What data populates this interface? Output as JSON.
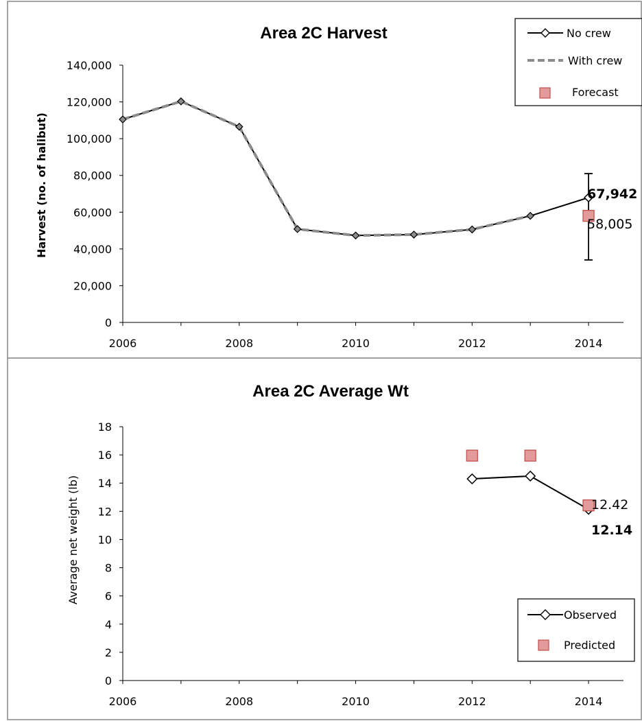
{
  "chart_data": [
    {
      "type": "line",
      "title": "Area 2C Harvest",
      "ylabel": "Harvest (no. of halibut)",
      "xlabel": "",
      "xlim": [
        2006,
        2014.6
      ],
      "ylim": [
        0,
        140000
      ],
      "x_ticks": [
        "2006",
        "2008",
        "2010",
        "2012",
        "2014"
      ],
      "y_ticks": [
        "0",
        "20,000",
        "40,000",
        "60,000",
        "80,000",
        "100,000",
        "120,000",
        "140,000"
      ],
      "series": [
        {
          "name": "No crew",
          "color": "#000000",
          "x": [
            2006,
            2007,
            2008,
            2009,
            2010,
            2011,
            2012,
            2013,
            2014
          ],
          "values": [
            110500,
            120300,
            106500,
            50800,
            47300,
            47800,
            50600,
            58000,
            67942
          ]
        },
        {
          "name": "With crew",
          "color": "#8c8c8c",
          "x": [
            2006,
            2007,
            2008,
            2009,
            2010,
            2011,
            2012,
            2013
          ],
          "values": [
            110500,
            120300,
            106500,
            50800,
            47300,
            47800,
            50600,
            58000
          ]
        },
        {
          "name": "Forecast",
          "color": "#e39a9a",
          "x": [
            2014
          ],
          "values": [
            58005
          ]
        }
      ],
      "error_bar": {
        "x": 2014,
        "low": 34000,
        "high": 81000
      },
      "annotations": {
        "observed": "67,942",
        "forecast": "58,005"
      },
      "legend": [
        "No crew",
        "With crew",
        "Forecast"
      ],
      "legend_position": "top-right",
      "grid": false
    },
    {
      "type": "line",
      "title": "Area 2C Average Wt",
      "ylabel": "Average net weight (lb)",
      "xlabel": "",
      "xlim": [
        2006,
        2014.6
      ],
      "ylim": [
        0,
        18
      ],
      "x_ticks": [
        "2006",
        "2008",
        "2010",
        "2012",
        "2014"
      ],
      "y_ticks": [
        "0",
        "2",
        "4",
        "6",
        "8",
        "10",
        "12",
        "14",
        "16",
        "18"
      ],
      "series": [
        {
          "name": "Observed",
          "color": "#000000",
          "x": [
            2012,
            2013,
            2014
          ],
          "values": [
            14.3,
            14.5,
            12.14
          ]
        },
        {
          "name": "Predicted",
          "color": "#e39a9a",
          "x": [
            2012,
            2013,
            2014
          ],
          "values": [
            15.95,
            15.95,
            12.42
          ]
        }
      ],
      "annotations": {
        "predicted": "12.42",
        "observed": "12.14"
      },
      "legend": [
        "Observed",
        "Predicted"
      ],
      "legend_position": "bottom-right",
      "grid": false
    }
  ]
}
